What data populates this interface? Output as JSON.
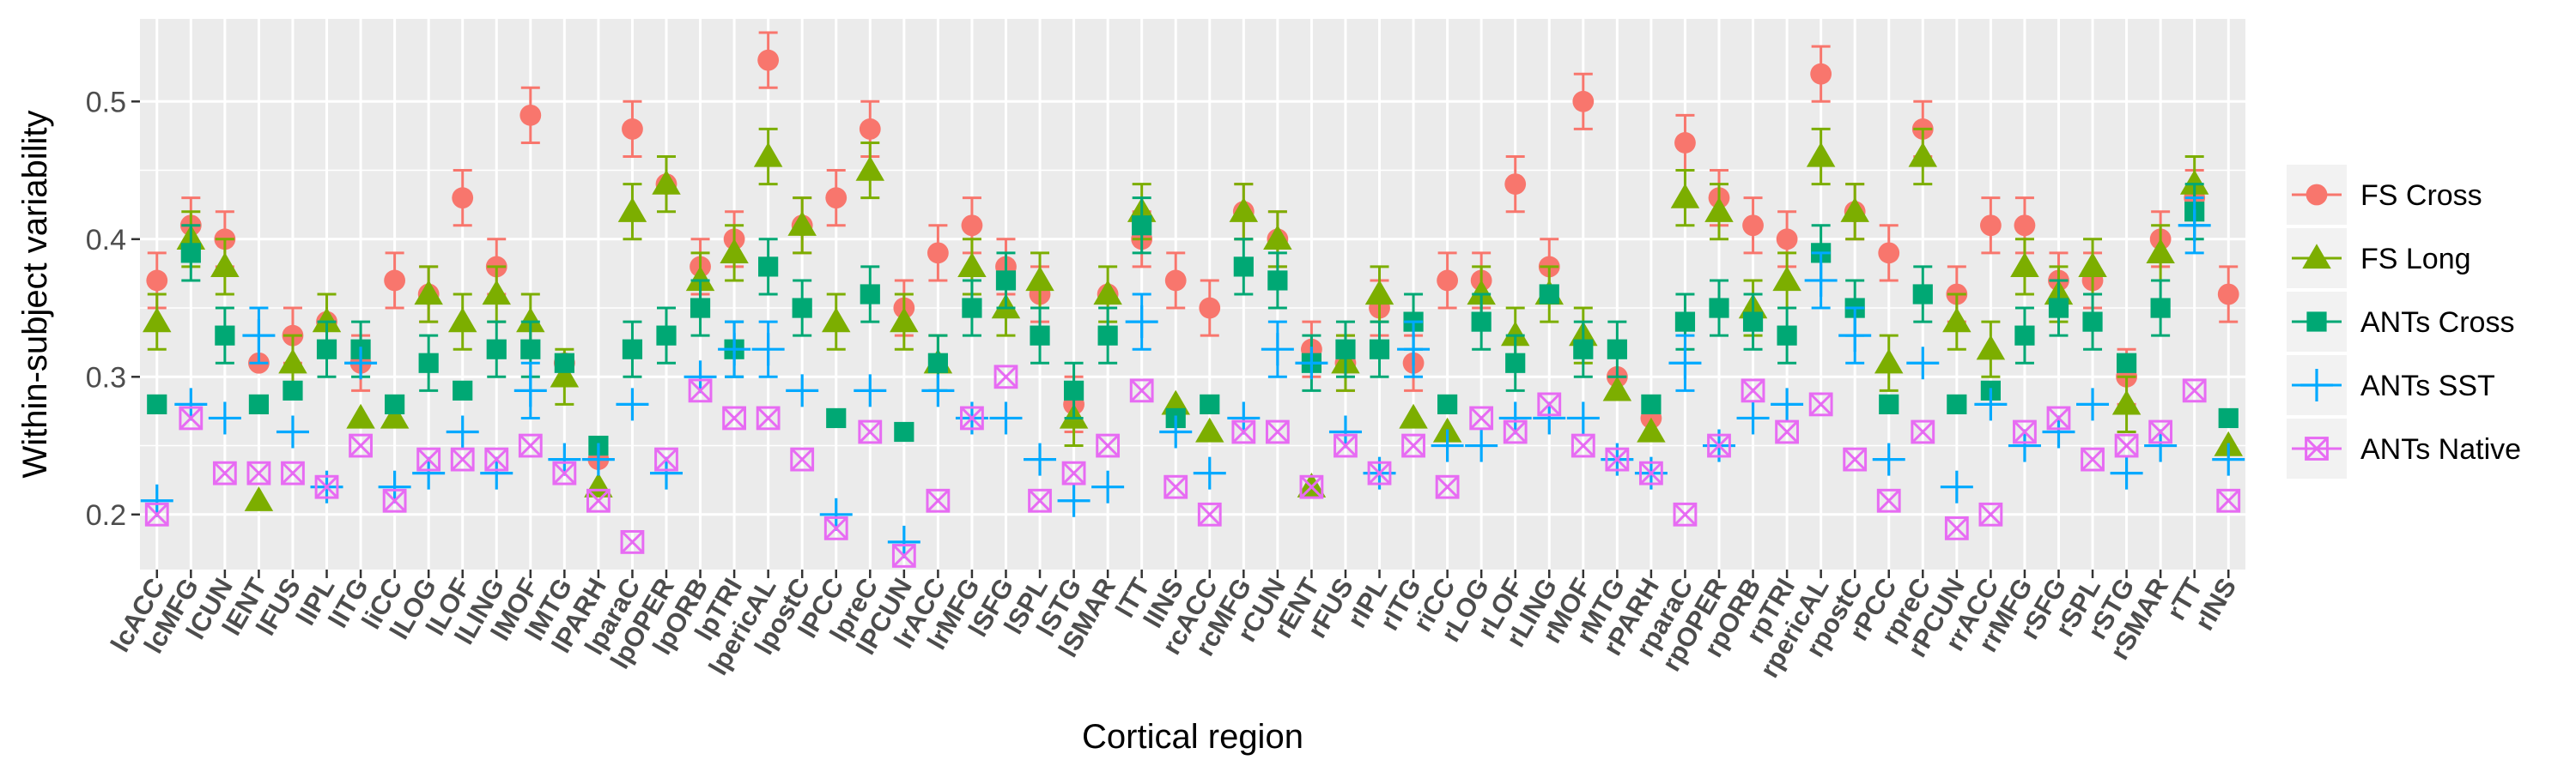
{
  "chart_data": {
    "type": "scatter",
    "title": "",
    "xlabel": "Cortical region",
    "ylabel": "Within-subject variability",
    "ylim": [
      0.16,
      0.56
    ],
    "yticks": [
      0.2,
      0.3,
      0.4,
      0.5
    ],
    "ytick_labels": [
      "0.2",
      "0.3",
      "0.4",
      "0.5"
    ],
    "grid": true,
    "legend_position": "right",
    "categories": [
      "lcACC",
      "lcMFG",
      "lCUN",
      "lENT",
      "lFUS",
      "lIPL",
      "lITG",
      "liCC",
      "lLOG",
      "lLOF",
      "lLING",
      "lMOF",
      "lMTG",
      "lPARH",
      "lparaC",
      "lpOPER",
      "lpORB",
      "lpTRI",
      "lpericAL",
      "lpostC",
      "lPCC",
      "lpreC",
      "lPCUN",
      "lrACC",
      "lrMFG",
      "lSFG",
      "lSPL",
      "lSTG",
      "lSMAR",
      "lTT",
      "lINS",
      "rcACC",
      "rcMFG",
      "rCUN",
      "rENT",
      "rFUS",
      "rIPL",
      "rITG",
      "riCC",
      "rLOG",
      "rLOF",
      "rLING",
      "rMOF",
      "rMTG",
      "rPARH",
      "rparaC",
      "rpOPER",
      "rpORB",
      "rpTRI",
      "rpericAL",
      "rpostC",
      "rPCC",
      "rpreC",
      "rPCUN",
      "rrACC",
      "rrMFG",
      "rSFG",
      "rSPL",
      "rSTG",
      "rSMAR",
      "rTT",
      "rINS"
    ],
    "series": [
      {
        "name": "FS Cross",
        "color": "#F8766D",
        "marker": "circle",
        "values": [
          0.37,
          0.41,
          0.4,
          0.31,
          0.33,
          0.34,
          0.31,
          0.37,
          0.36,
          0.43,
          0.38,
          0.49,
          0.31,
          0.24,
          0.48,
          0.44,
          0.38,
          0.4,
          0.53,
          0.41,
          0.43,
          0.48,
          0.35,
          0.39,
          0.41,
          0.38,
          0.36,
          0.28,
          0.36,
          0.4,
          0.37,
          0.35,
          0.42,
          0.4,
          0.32,
          0.31,
          0.35,
          0.31,
          0.37,
          0.37,
          0.44,
          0.38,
          0.5,
          0.3,
          0.27,
          0.47,
          0.43,
          0.41,
          0.4,
          0.52,
          0.42,
          0.39,
          0.48,
          0.36,
          0.41,
          0.41,
          0.37,
          0.37,
          0.3,
          0.4,
          0.43,
          0.36
        ],
        "errors": [
          0.02,
          0.02,
          0.02,
          0.0,
          0.02,
          0.02,
          0.02,
          0.02,
          0.02,
          0.02,
          0.02,
          0.02,
          0.0,
          0.0,
          0.02,
          0.0,
          0.02,
          0.02,
          0.02,
          0.02,
          0.02,
          0.02,
          0.02,
          0.02,
          0.02,
          0.02,
          0.02,
          0.02,
          0.0,
          0.02,
          0.02,
          0.02,
          0.02,
          0.02,
          0.02,
          0.02,
          0.02,
          0.02,
          0.02,
          0.02,
          0.02,
          0.02,
          0.02,
          0.0,
          0.0,
          0.02,
          0.02,
          0.02,
          0.02,
          0.02,
          0.02,
          0.02,
          0.02,
          0.02,
          0.02,
          0.02,
          0.02,
          0.02,
          0.02,
          0.02,
          0.02,
          0.02
        ]
      },
      {
        "name": "FS Long",
        "color": "#7CAE00",
        "marker": "triangle",
        "values": [
          0.34,
          0.4,
          0.38,
          0.21,
          0.31,
          0.34,
          0.27,
          0.27,
          0.36,
          0.34,
          0.36,
          0.34,
          0.3,
          0.22,
          0.42,
          0.44,
          0.37,
          0.39,
          0.46,
          0.41,
          0.34,
          0.45,
          0.34,
          0.31,
          0.38,
          0.35,
          0.37,
          0.27,
          0.36,
          0.42,
          0.28,
          0.26,
          0.42,
          0.4,
          0.22,
          0.31,
          0.36,
          0.27,
          0.26,
          0.36,
          0.33,
          0.36,
          0.33,
          0.29,
          0.26,
          0.43,
          0.42,
          0.35,
          0.37,
          0.46,
          0.42,
          0.31,
          0.46,
          0.34,
          0.32,
          0.38,
          0.36,
          0.38,
          0.28,
          0.39,
          0.44,
          0.25
        ],
        "errors": [
          0.02,
          0.02,
          0.02,
          0.0,
          0.02,
          0.02,
          0.0,
          0.0,
          0.02,
          0.02,
          0.02,
          0.02,
          0.02,
          0.0,
          0.02,
          0.02,
          0.02,
          0.02,
          0.02,
          0.02,
          0.02,
          0.02,
          0.02,
          0.02,
          0.02,
          0.02,
          0.02,
          0.02,
          0.02,
          0.02,
          0.0,
          0.0,
          0.02,
          0.02,
          0.0,
          0.02,
          0.02,
          0.0,
          0.0,
          0.02,
          0.02,
          0.02,
          0.02,
          0.0,
          0.0,
          0.02,
          0.02,
          0.02,
          0.02,
          0.02,
          0.02,
          0.02,
          0.02,
          0.02,
          0.02,
          0.02,
          0.02,
          0.02,
          0.02,
          0.02,
          0.02,
          0.0
        ]
      },
      {
        "name": "ANTs Cross",
        "color": "#00A874",
        "marker": "square",
        "values": [
          0.28,
          0.39,
          0.33,
          0.28,
          0.29,
          0.32,
          0.32,
          0.28,
          0.31,
          0.29,
          0.32,
          0.32,
          0.31,
          0.25,
          0.32,
          0.33,
          0.35,
          0.32,
          0.38,
          0.35,
          0.27,
          0.36,
          0.26,
          0.31,
          0.35,
          0.37,
          0.33,
          0.29,
          0.33,
          0.41,
          0.27,
          0.28,
          0.38,
          0.37,
          0.31,
          0.32,
          0.32,
          0.34,
          0.28,
          0.34,
          0.31,
          0.36,
          0.32,
          0.32,
          0.28,
          0.34,
          0.35,
          0.34,
          0.33,
          0.39,
          0.35,
          0.28,
          0.36,
          0.28,
          0.29,
          0.33,
          0.35,
          0.34,
          0.31,
          0.35,
          0.42,
          0.27
        ],
        "errors": [
          0.0,
          0.02,
          0.02,
          0.0,
          0.0,
          0.02,
          0.02,
          0.0,
          0.02,
          0.0,
          0.02,
          0.02,
          0.0,
          0.0,
          0.02,
          0.02,
          0.02,
          0.02,
          0.02,
          0.02,
          0.0,
          0.02,
          0.0,
          0.02,
          0.02,
          0.02,
          0.02,
          0.02,
          0.02,
          0.02,
          0.0,
          0.0,
          0.02,
          0.02,
          0.02,
          0.02,
          0.02,
          0.02,
          0.0,
          0.02,
          0.02,
          0.0,
          0.02,
          0.02,
          0.0,
          0.02,
          0.02,
          0.02,
          0.02,
          0.02,
          0.02,
          0.0,
          0.02,
          0.0,
          0.0,
          0.02,
          0.02,
          0.02,
          0.0,
          0.02,
          0.02,
          0.0
        ]
      },
      {
        "name": "ANTs SST",
        "color": "#00A9FF",
        "marker": "plus",
        "values": [
          0.21,
          0.28,
          0.27,
          0.33,
          0.26,
          0.22,
          0.31,
          0.22,
          0.23,
          0.26,
          0.23,
          0.29,
          0.24,
          0.24,
          0.28,
          0.23,
          0.3,
          0.32,
          0.32,
          0.29,
          0.2,
          0.29,
          0.18,
          0.29,
          0.27,
          0.27,
          0.24,
          0.21,
          0.22,
          0.34,
          0.26,
          0.23,
          0.27,
          0.32,
          0.31,
          0.26,
          0.23,
          0.32,
          0.25,
          0.25,
          0.27,
          0.27,
          0.27,
          0.24,
          0.23,
          0.31,
          0.25,
          0.27,
          0.28,
          0.37,
          0.33,
          0.24,
          0.31,
          0.22,
          0.28,
          0.25,
          0.26,
          0.28,
          0.23,
          0.25,
          0.41,
          0.24
        ],
        "errors": [
          0.0,
          0.0,
          0.0,
          0.02,
          0.0,
          0.0,
          0.0,
          0.0,
          0.0,
          0.0,
          0.0,
          0.02,
          0.0,
          0.0,
          0.0,
          0.0,
          0.0,
          0.02,
          0.02,
          0.0,
          0.0,
          0.0,
          0.0,
          0.0,
          0.0,
          0.0,
          0.0,
          0.0,
          0.0,
          0.02,
          0.0,
          0.0,
          0.0,
          0.02,
          0.0,
          0.0,
          0.0,
          0.02,
          0.0,
          0.0,
          0.0,
          0.0,
          0.0,
          0.0,
          0.0,
          0.02,
          0.0,
          0.0,
          0.0,
          0.02,
          0.02,
          0.0,
          0.0,
          0.0,
          0.0,
          0.0,
          0.0,
          0.0,
          0.0,
          0.0,
          0.02,
          0.0
        ]
      },
      {
        "name": "ANTs Native",
        "color": "#E76BF3",
        "marker": "boxx",
        "values": [
          0.2,
          0.27,
          0.23,
          0.23,
          0.23,
          0.22,
          0.25,
          0.21,
          0.24,
          0.24,
          0.24,
          0.25,
          0.23,
          0.21,
          0.18,
          0.24,
          0.29,
          0.27,
          0.27,
          0.24,
          0.19,
          0.26,
          0.17,
          0.21,
          0.27,
          0.3,
          0.21,
          0.23,
          0.25,
          0.29,
          0.22,
          0.2,
          0.26,
          0.26,
          0.22,
          0.25,
          0.23,
          0.25,
          0.22,
          0.27,
          0.26,
          0.28,
          0.25,
          0.24,
          0.23,
          0.2,
          0.25,
          0.29,
          0.26,
          0.28,
          0.24,
          0.21,
          0.26,
          0.19,
          0.2,
          0.26,
          0.27,
          0.24,
          0.25,
          0.26,
          0.29,
          0.21
        ],
        "errors": [
          0.0,
          0.0,
          0.0,
          0.0,
          0.0,
          0.0,
          0.0,
          0.0,
          0.0,
          0.0,
          0.0,
          0.0,
          0.0,
          0.0,
          0.0,
          0.0,
          0.0,
          0.0,
          0.0,
          0.0,
          0.0,
          0.0,
          0.0,
          0.0,
          0.0,
          0.0,
          0.0,
          0.0,
          0.0,
          0.0,
          0.0,
          0.0,
          0.0,
          0.0,
          0.0,
          0.0,
          0.0,
          0.0,
          0.0,
          0.0,
          0.0,
          0.0,
          0.0,
          0.0,
          0.0,
          0.0,
          0.0,
          0.0,
          0.0,
          0.0,
          0.0,
          0.0,
          0.0,
          0.0,
          0.0,
          0.0,
          0.0,
          0.0,
          0.0,
          0.0,
          0.0,
          0.0
        ]
      }
    ]
  }
}
